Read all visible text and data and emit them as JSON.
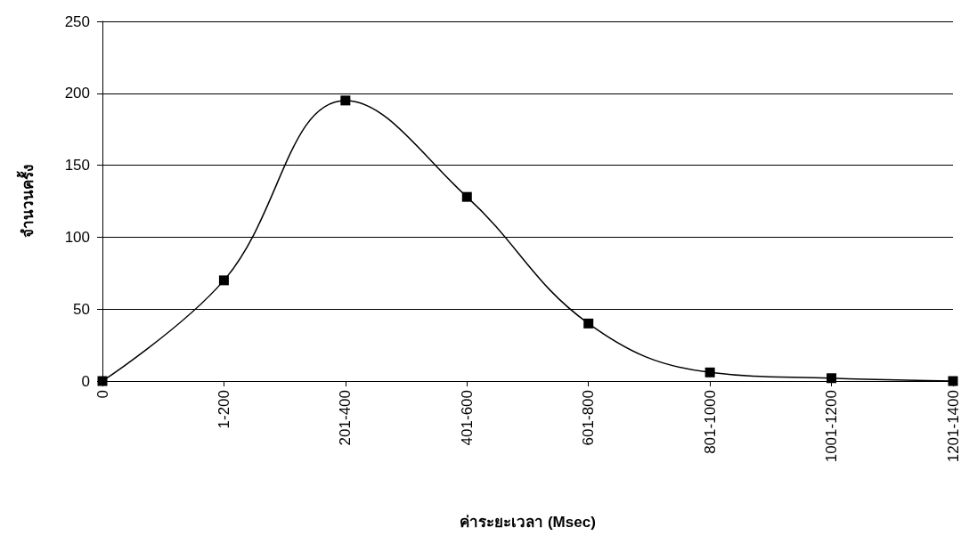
{
  "chart_data": {
    "type": "line",
    "xlabel": "ค่าระยะเวลา (Msec)",
    "ylabel": "จำนวนครั้ง",
    "categories": [
      "0",
      "1-200",
      "201-400",
      "401-600",
      "601-800",
      "801-1000",
      "1001-1200",
      "1201-1400"
    ],
    "series": [
      {
        "color": "#000000",
        "values": [
          0,
          70,
          195,
          128,
          40,
          6,
          2,
          0
        ]
      }
    ],
    "ylim": [
      0,
      250
    ],
    "yticks": [
      0,
      50,
      100,
      150,
      200,
      250
    ],
    "grid": "y",
    "marker": "square",
    "line_style": "solid"
  }
}
